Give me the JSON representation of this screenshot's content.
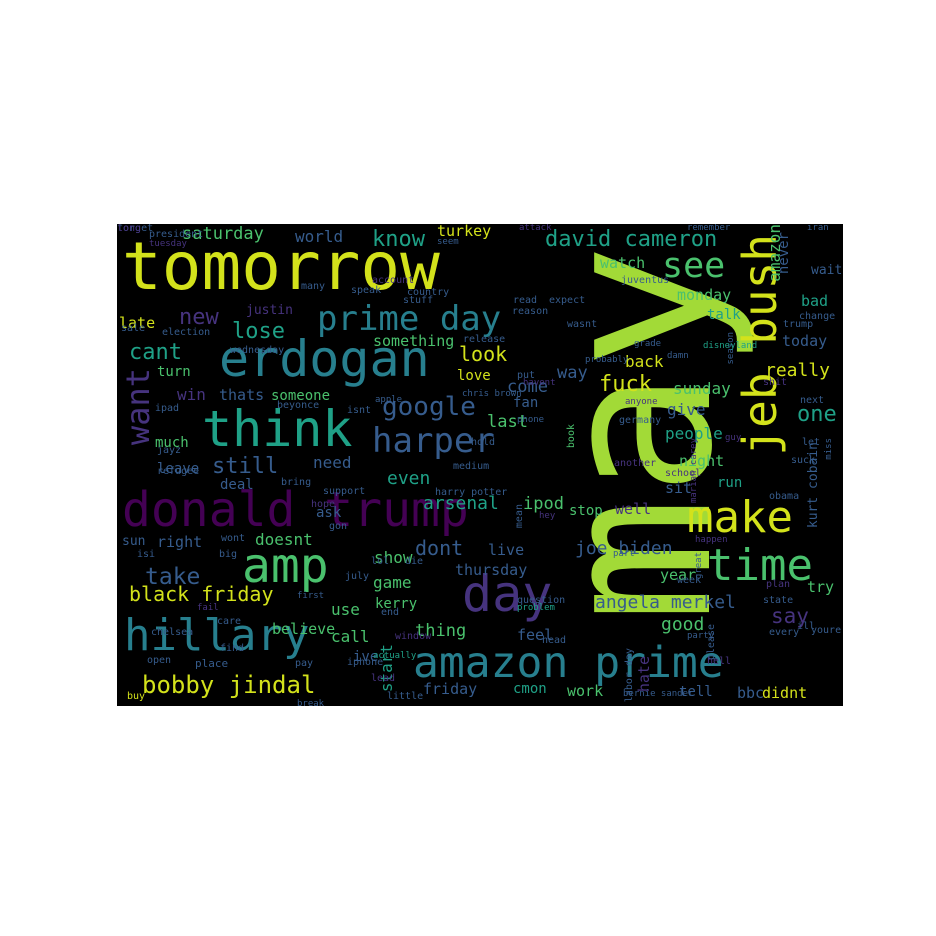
{
  "palette": {
    "yellow": "#d3e21b",
    "lime": "#a2da37",
    "green": "#4ac16d",
    "teal": "#1fa187",
    "cyan": "#277f8e",
    "blue": "#365c8d",
    "indigo": "#46337e",
    "purple": "#440154",
    "background": "#000000"
  },
  "words": [
    {
      "text": "tomorrow",
      "color": "yellow"
    },
    {
      "text": "may",
      "color": "lime"
    },
    {
      "text": "donald trump",
      "color": "purple"
    },
    {
      "text": "amazon prime",
      "color": "cyan"
    },
    {
      "text": "erdogan",
      "color": "cyan"
    },
    {
      "text": "hillary",
      "color": "cyan"
    },
    {
      "text": "prime day",
      "color": "cyan"
    },
    {
      "text": "think",
      "color": "teal"
    },
    {
      "text": "amp",
      "color": "green"
    },
    {
      "text": "jeb bush",
      "color": "yellow"
    },
    {
      "text": "make",
      "color": "yellow"
    },
    {
      "text": "time",
      "color": "green"
    },
    {
      "text": "day",
      "color": "indigo"
    },
    {
      "text": "harper",
      "color": "blue"
    },
    {
      "text": "see",
      "color": "green"
    },
    {
      "text": "want",
      "color": "indigo"
    },
    {
      "text": "david cameron",
      "color": "teal"
    },
    {
      "text": "bobby jindal",
      "color": "yellow"
    },
    {
      "text": "google",
      "color": "blue"
    },
    {
      "text": "joe biden",
      "color": "blue"
    },
    {
      "text": "angela merkel",
      "color": "blue"
    },
    {
      "text": "black friday",
      "color": "yellow"
    },
    {
      "text": "take",
      "color": "blue"
    },
    {
      "text": "lose",
      "color": "teal"
    },
    {
      "text": "cant",
      "color": "teal"
    },
    {
      "text": "new",
      "color": "indigo"
    },
    {
      "text": "still",
      "color": "blue"
    },
    {
      "text": "know",
      "color": "teal"
    },
    {
      "text": "saturday",
      "color": "green"
    },
    {
      "text": "world",
      "color": "blue"
    },
    {
      "text": "turkey",
      "color": "yellow"
    },
    {
      "text": "watch",
      "color": "green"
    },
    {
      "text": "amazon",
      "color": "green"
    },
    {
      "text": "never",
      "color": "blue"
    },
    {
      "text": "wait",
      "color": "blue"
    },
    {
      "text": "bad",
      "color": "teal"
    },
    {
      "text": "monday",
      "color": "green"
    },
    {
      "text": "talk",
      "color": "teal"
    },
    {
      "text": "today",
      "color": "blue"
    },
    {
      "text": "really",
      "color": "yellow"
    },
    {
      "text": "one",
      "color": "teal"
    },
    {
      "text": "sunday",
      "color": "green"
    },
    {
      "text": "fuck",
      "color": "yellow"
    },
    {
      "text": "look",
      "color": "yellow"
    },
    {
      "text": "back",
      "color": "yellow"
    },
    {
      "text": "come",
      "color": "blue"
    },
    {
      "text": "way",
      "color": "blue"
    },
    {
      "text": "love",
      "color": "yellow"
    },
    {
      "text": "last",
      "color": "green"
    },
    {
      "text": "fan",
      "color": "blue"
    },
    {
      "text": "give",
      "color": "blue"
    },
    {
      "text": "people",
      "color": "teal"
    },
    {
      "text": "night",
      "color": "green"
    },
    {
      "text": "run",
      "color": "teal"
    },
    {
      "text": "sit",
      "color": "blue"
    },
    {
      "text": "kurt cobain",
      "color": "blue"
    },
    {
      "text": "need",
      "color": "blue"
    },
    {
      "text": "even",
      "color": "teal"
    },
    {
      "text": "arsenal",
      "color": "teal"
    },
    {
      "text": "ipod",
      "color": "green"
    },
    {
      "text": "stop",
      "color": "green"
    },
    {
      "text": "well",
      "color": "indigo"
    },
    {
      "text": "dont",
      "color": "blue"
    },
    {
      "text": "live",
      "color": "blue"
    },
    {
      "text": "show",
      "color": "green"
    },
    {
      "text": "game",
      "color": "green"
    },
    {
      "text": "kerry",
      "color": "green"
    },
    {
      "text": "thursday",
      "color": "blue"
    },
    {
      "text": "year",
      "color": "green"
    },
    {
      "text": "try",
      "color": "green"
    },
    {
      "text": "say",
      "color": "indigo"
    },
    {
      "text": "good",
      "color": "green"
    },
    {
      "text": "feel",
      "color": "blue"
    },
    {
      "text": "thing",
      "color": "green"
    },
    {
      "text": "start",
      "color": "teal"
    },
    {
      "text": "friday",
      "color": "blue"
    },
    {
      "text": "cmon",
      "color": "teal"
    },
    {
      "text": "work",
      "color": "green"
    },
    {
      "text": "hate",
      "color": "indigo"
    },
    {
      "text": "tell",
      "color": "blue"
    },
    {
      "text": "bbc",
      "color": "blue"
    },
    {
      "text": "didnt",
      "color": "yellow"
    },
    {
      "text": "use",
      "color": "green"
    },
    {
      "text": "call",
      "color": "green"
    },
    {
      "text": "ive",
      "color": "blue"
    },
    {
      "text": "believe",
      "color": "green"
    },
    {
      "text": "right",
      "color": "blue"
    },
    {
      "text": "doesnt",
      "color": "green"
    },
    {
      "text": "sun",
      "color": "blue"
    },
    {
      "text": "ask",
      "color": "blue"
    },
    {
      "text": "deal",
      "color": "blue"
    },
    {
      "text": "leave",
      "color": "blue"
    },
    {
      "text": "much",
      "color": "green"
    },
    {
      "text": "win",
      "color": "indigo"
    },
    {
      "text": "thats",
      "color": "blue"
    },
    {
      "text": "someone",
      "color": "green"
    },
    {
      "text": "something",
      "color": "green"
    },
    {
      "text": "turn",
      "color": "green"
    },
    {
      "text": "late",
      "color": "yellow"
    },
    {
      "text": "justin",
      "color": "indigo"
    },
    {
      "text": "election",
      "color": "blue"
    },
    {
      "text": "wednesday",
      "color": "blue"
    },
    {
      "text": "beyonce",
      "color": "blue"
    },
    {
      "text": "isnt",
      "color": "blue"
    },
    {
      "text": "ipad",
      "color": "blue"
    },
    {
      "text": "jayz",
      "color": "blue"
    },
    {
      "text": "refugee",
      "color": "blue"
    },
    {
      "text": "bring",
      "color": "blue"
    },
    {
      "text": "support",
      "color": "blue"
    },
    {
      "text": "hope",
      "color": "indigo"
    },
    {
      "text": "gon",
      "color": "blue"
    },
    {
      "text": "wont",
      "color": "blue"
    },
    {
      "text": "isi",
      "color": "blue"
    },
    {
      "text": "big",
      "color": "blue"
    },
    {
      "text": "july",
      "color": "blue"
    },
    {
      "text": "lol",
      "color": "blue"
    },
    {
      "text": "die",
      "color": "blue"
    },
    {
      "text": "medium",
      "color": "blue"
    },
    {
      "text": "harry potter",
      "color": "blue"
    },
    {
      "text": "release",
      "color": "blue"
    },
    {
      "text": "chris brown",
      "color": "blue"
    },
    {
      "text": "put",
      "color": "blue"
    },
    {
      "text": "havent",
      "color": "indigo"
    },
    {
      "text": "mean",
      "color": "blue"
    },
    {
      "text": "hey",
      "color": "indigo"
    },
    {
      "text": "book",
      "color": "green"
    },
    {
      "text": "part",
      "color": "blue"
    },
    {
      "text": "problem",
      "color": "teal"
    },
    {
      "text": "question",
      "color": "blue"
    },
    {
      "text": "first",
      "color": "blue"
    },
    {
      "text": "end",
      "color": "blue"
    },
    {
      "text": "window",
      "color": "indigo"
    },
    {
      "text": "head",
      "color": "blue"
    },
    {
      "text": "labor day",
      "color": "blue"
    },
    {
      "text": "bernie sander",
      "color": "blue"
    },
    {
      "text": "iphone",
      "color": "blue"
    },
    {
      "text": "pay",
      "color": "blue"
    },
    {
      "text": "place",
      "color": "blue"
    },
    {
      "text": "open",
      "color": "blue"
    },
    {
      "text": "chelsea",
      "color": "blue"
    },
    {
      "text": "care",
      "color": "blue"
    },
    {
      "text": "find",
      "color": "blue"
    },
    {
      "text": "fail",
      "color": "indigo"
    },
    {
      "text": "buy",
      "color": "yellow"
    },
    {
      "text": "lead",
      "color": "indigo"
    },
    {
      "text": "actually",
      "color": "teal"
    },
    {
      "text": "little",
      "color": "blue"
    },
    {
      "text": "break",
      "color": "blue"
    },
    {
      "text": "president",
      "color": "blue"
    },
    {
      "text": "tuesday",
      "color": "indigo"
    },
    {
      "text": "seem",
      "color": "blue"
    },
    {
      "text": "attack",
      "color": "indigo"
    },
    {
      "text": "remember",
      "color": "blue"
    },
    {
      "text": "iran",
      "color": "blue"
    },
    {
      "text": "account",
      "color": "indigo"
    },
    {
      "text": "speak",
      "color": "blue"
    },
    {
      "text": "many",
      "color": "blue"
    },
    {
      "text": "country",
      "color": "blue"
    },
    {
      "text": "stuff",
      "color": "blue"
    },
    {
      "text": "read",
      "color": "blue"
    },
    {
      "text": "expect",
      "color": "blue"
    },
    {
      "text": "reason",
      "color": "blue"
    },
    {
      "text": "wasnt",
      "color": "blue"
    },
    {
      "text": "juventus",
      "color": "blue"
    },
    {
      "text": "sale",
      "color": "blue"
    },
    {
      "text": "change",
      "color": "blue"
    },
    {
      "text": "trump",
      "color": "blue"
    },
    {
      "text": "season",
      "color": "blue"
    },
    {
      "text": "disneyland",
      "color": "teal"
    },
    {
      "text": "grade",
      "color": "blue"
    },
    {
      "text": "damn",
      "color": "blue"
    },
    {
      "text": "probably",
      "color": "blue"
    },
    {
      "text": "shit",
      "color": "indigo"
    },
    {
      "text": "next",
      "color": "blue"
    },
    {
      "text": "anyone",
      "color": "indigo"
    },
    {
      "text": "phone",
      "color": "blue"
    },
    {
      "text": "hold",
      "color": "blue"
    },
    {
      "text": "apple",
      "color": "blue"
    },
    {
      "text": "germany",
      "color": "blue"
    },
    {
      "text": "another",
      "color": "indigo"
    },
    {
      "text": "guy",
      "color": "indigo"
    },
    {
      "text": "let",
      "color": "blue"
    },
    {
      "text": "suck",
      "color": "blue"
    },
    {
      "text": "miss",
      "color": "blue"
    },
    {
      "text": "school",
      "color": "indigo"
    },
    {
      "text": "marian carey",
      "color": "indigo"
    },
    {
      "text": "obama",
      "color": "blue"
    },
    {
      "text": "happen",
      "color": "indigo"
    },
    {
      "text": "great",
      "color": "blue"
    },
    {
      "text": "week",
      "color": "blue"
    },
    {
      "text": "plan",
      "color": "indigo"
    },
    {
      "text": "state",
      "color": "blue"
    },
    {
      "text": "party",
      "color": "blue"
    },
    {
      "text": "please",
      "color": "blue"
    },
    {
      "text": "every",
      "color": "blue"
    },
    {
      "text": "youre",
      "color": "blue"
    },
    {
      "text": "ill",
      "color": "blue"
    },
    {
      "text": "hell",
      "color": "indigo"
    },
    {
      "text": "forget",
      "color": "blue"
    },
    {
      "text": "long",
      "color": "indigo"
    }
  ]
}
